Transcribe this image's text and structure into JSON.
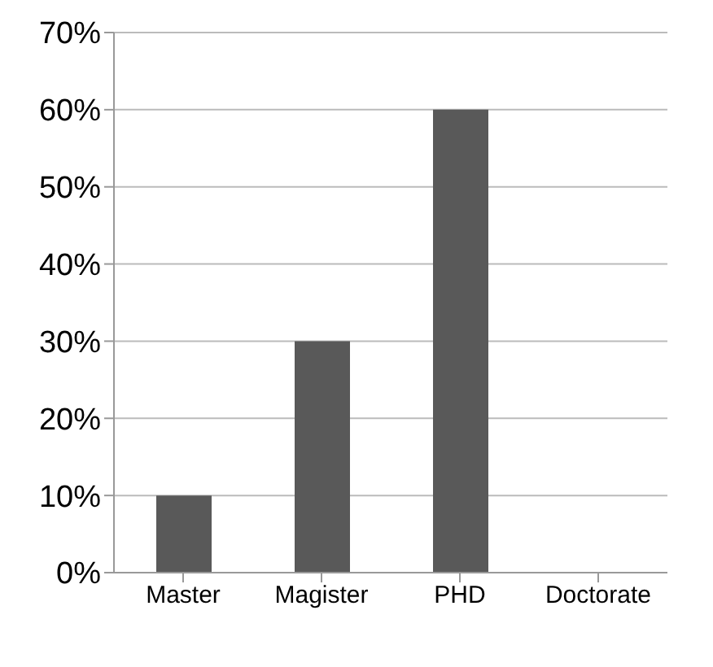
{
  "chart_data": {
    "type": "bar",
    "categories": [
      "Master",
      "Magister",
      "PHD",
      "Doctorate"
    ],
    "values": [
      10,
      30,
      60,
      null
    ],
    "color": "#595959",
    "ylim": [
      0,
      70
    ],
    "yticks": [
      {
        "value": 0,
        "label": "0%"
      },
      {
        "value": 10,
        "label": "10%"
      },
      {
        "value": 20,
        "label": "20%"
      },
      {
        "value": 30,
        "label": "30%"
      },
      {
        "value": 40,
        "label": "40%"
      },
      {
        "value": 50,
        "label": "50%"
      },
      {
        "value": 60,
        "label": "60%"
      },
      {
        "value": 70,
        "label": "70%"
      }
    ],
    "grid": "y"
  }
}
